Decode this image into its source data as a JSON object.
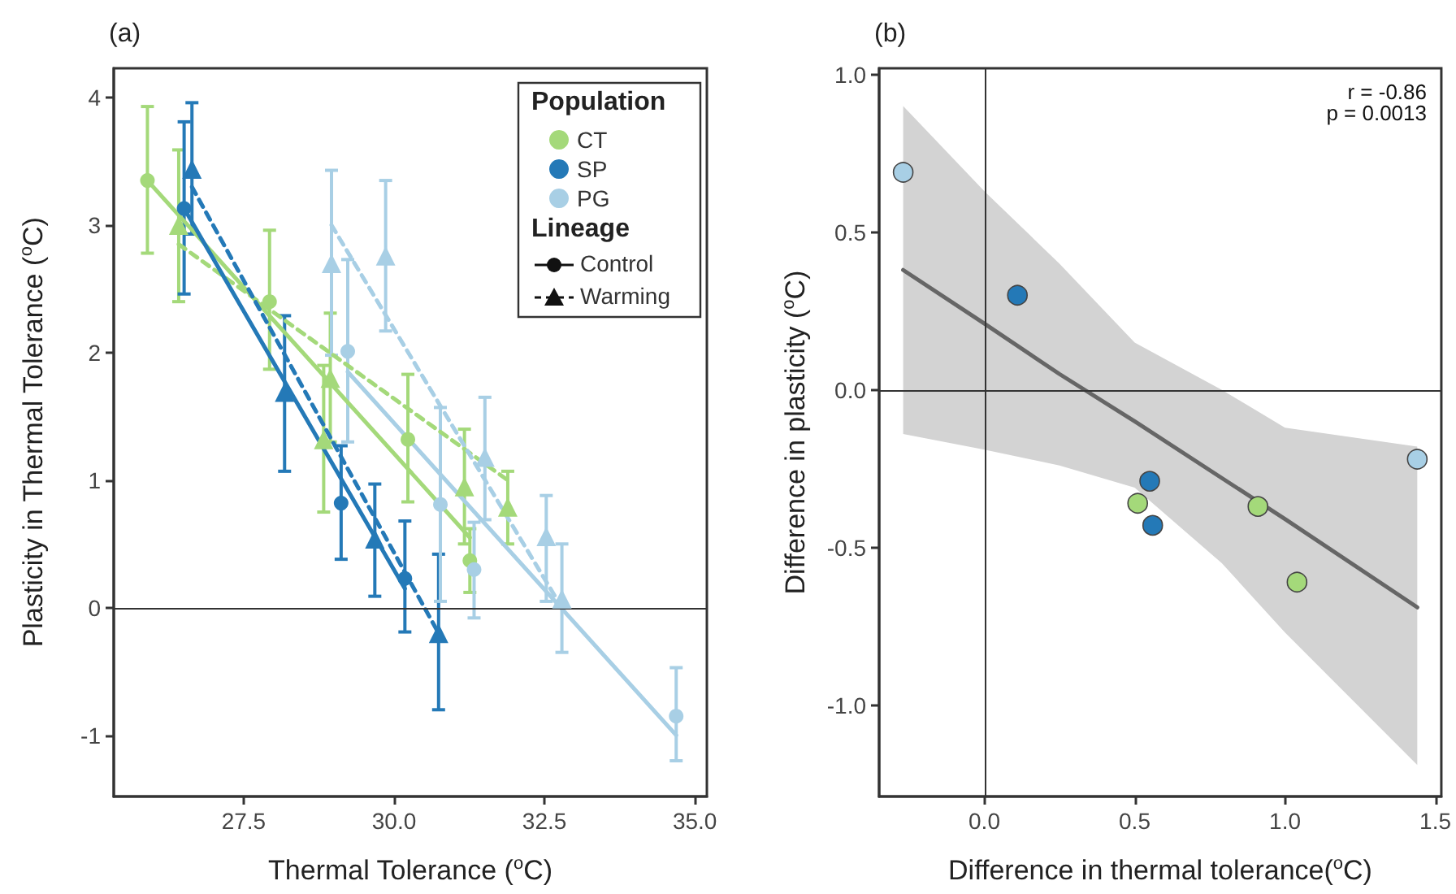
{
  "chart_data": [
    {
      "type": "scatter",
      "title": "(a)",
      "xlabel": "Thermal Tolerance ($^{o}$C)",
      "ylabel": "Plasticity in Thermal Tolerance ($^{o}$C)",
      "legend_title": "Population",
      "legend": "top right",
      "grid": false,
      "xlim": [
        25.34,
        35.2
      ],
      "xticks": [
        {
          "value": 27.5,
          "label": "27.5"
        },
        {
          "value": 30,
          "label": "30.0"
        },
        {
          "value": 32.5,
          "label": "32.5"
        },
        {
          "value": 35,
          "label": "35.0"
        }
      ],
      "ylim": [
        -1.48,
        4.23
      ],
      "yticks": [
        -1,
        0,
        1,
        2,
        3,
        4
      ],
      "ref_lines": [
        {
          "axis": "y",
          "value": 0,
          "color": "#333333"
        }
      ],
      "annotations": [
        "Lineage",
        "Control",
        "Warming"
      ],
      "series": [
        {
          "name": "CT",
          "color": "#a4d97a",
          "marker": "circle",
          "x": [
            25.9,
            27.93,
            30.23,
            31.26
          ],
          "values": [
            3.35,
            2.4,
            1.32,
            0.37
          ],
          "errors": [
            [
              2.78,
              3.93
            ],
            [
              1.87,
              2.96
            ],
            [
              0.83,
              1.83
            ],
            [
              0.12,
              0.62
            ]
          ]
        },
        {
          "color": "#a4d97a",
          "marker": "triangle",
          "x": [
            26.42,
            28.83,
            28.94,
            31.17,
            31.89
          ],
          "values": [
            3.0,
            1.32,
            1.8,
            0.95,
            0.79
          ],
          "errors": [
            [
              2.4,
              3.59
            ],
            [
              0.75,
              1.9
            ],
            [
              1.3,
              2.31
            ],
            [
              0.5,
              1.4
            ],
            [
              0.5,
              1.07
            ]
          ]
        },
        {
          "name": "SP",
          "color": "#2479b7",
          "marker": "circle",
          "x": [
            26.51,
            29.12,
            30.18
          ],
          "values": [
            3.13,
            0.82,
            0.23
          ],
          "errors": [
            [
              2.46,
              3.81
            ],
            [
              0.38,
              1.27
            ],
            [
              -0.19,
              0.68
            ]
          ]
        },
        {
          "color": "#2479b7",
          "marker": "triangle",
          "x": [
            26.64,
            28.18,
            29.68,
            30.74
          ],
          "values": [
            3.44,
            1.69,
            0.54,
            -0.2
          ],
          "errors": [
            [
              2.93,
              3.96
            ],
            [
              1.07,
              2.29
            ],
            [
              0.09,
              0.97
            ],
            [
              -0.8,
              0.42
            ]
          ]
        },
        {
          "name": "PG",
          "color": "#a8cfe5",
          "marker": "circle",
          "x": [
            29.23,
            30.77,
            31.33,
            34.69
          ],
          "values": [
            2.01,
            0.81,
            0.3,
            -0.85
          ],
          "errors": [
            [
              1.3,
              2.73
            ],
            [
              0.05,
              1.57
            ],
            [
              -0.08,
              0.67
            ],
            [
              -1.2,
              -0.47
            ]
          ]
        },
        {
          "color": "#a8cfe5",
          "marker": "triangle",
          "x": [
            28.96,
            29.86,
            31.51,
            32.53,
            32.79
          ],
          "values": [
            2.7,
            2.76,
            1.18,
            0.56,
            0.07
          ],
          "errors": [
            [
              1.98,
              3.43
            ],
            [
              2.17,
              3.35
            ],
            [
              0.69,
              1.65
            ],
            [
              0.05,
              0.88
            ],
            [
              -0.35,
              0.5
            ]
          ]
        },
        {
          "type": "line",
          "color": "#a4d97a",
          "line_style": "solid",
          "x": [
            25.9,
            31.26
          ],
          "values": [
            3.35,
            0.55
          ]
        },
        {
          "type": "line",
          "color": "#a4d97a",
          "line_style": "dashed",
          "x": [
            26.42,
            31.89
          ],
          "values": [
            2.85,
            1.0
          ]
        },
        {
          "type": "line",
          "color": "#2479b7",
          "line_style": "solid",
          "x": [
            26.51,
            30.18
          ],
          "values": [
            3.13,
            0.15
          ]
        },
        {
          "type": "line",
          "color": "#2479b7",
          "line_style": "dashed",
          "x": [
            26.64,
            30.74
          ],
          "values": [
            3.3,
            -0.2
          ]
        },
        {
          "type": "line",
          "color": "#a8cfe5",
          "line_style": "solid",
          "x": [
            29.23,
            34.69
          ],
          "values": [
            1.85,
            -1.0
          ]
        },
        {
          "type": "line",
          "color": "#a8cfe5",
          "line_style": "dashed",
          "x": [
            28.96,
            32.79
          ],
          "values": [
            3.0,
            0.0
          ]
        }
      ]
    },
    {
      "type": "scatter",
      "title": "(b)",
      "xlabel": "Difference in thermal tolerance($^{o}$C)",
      "ylabel": "Difference in plasticity ($^{o}$C)",
      "grid": false,
      "xlim": [
        -0.35,
        1.52
      ],
      "xticks": [
        {
          "value": 0,
          "label": "0.0"
        },
        {
          "value": 0.5,
          "label": "0.5"
        },
        {
          "value": 1,
          "label": "1.0"
        },
        {
          "value": 1.5,
          "label": "1.5"
        }
      ],
      "ylim": [
        -1.29,
        1.02
      ],
      "yticks": [
        {
          "value": -1,
          "label": "-1.0"
        },
        {
          "value": -0.5,
          "label": "-0.5"
        },
        {
          "value": 0,
          "label": "0.0"
        },
        {
          "value": 0.5,
          "label": "0.5"
        },
        {
          "value": 1,
          "label": "1.0"
        }
      ],
      "ref_lines": [
        {
          "axis": "x",
          "value": 0,
          "color": "#333333"
        },
        {
          "axis": "y",
          "value": 0,
          "color": "#333333"
        }
      ],
      "annotations": [
        "r = -0.86",
        "p = 0.0013"
      ],
      "series": [
        {
          "type": "line",
          "color": "#666666",
          "line_style": "solid",
          "x": [
            -0.27,
            0,
            0.25,
            0.5,
            0.79,
            1.0,
            1.44
          ],
          "values": [
            0.38,
            0.21,
            0.05,
            -0.1,
            -0.28,
            -0.41,
            -0.69
          ],
          "lower": [
            -0.14,
            -0.19,
            -0.24,
            -0.31,
            -0.55,
            -0.77,
            -1.19
          ],
          "upper": [
            0.9,
            0.63,
            0.4,
            0.15,
            0.0,
            -0.12,
            -0.18
          ]
        },
        {
          "color": "#a4d97a",
          "marker": "circle",
          "x": [
            0.51,
            0.91,
            1.04
          ],
          "values": [
            -0.36,
            -0.37,
            -0.61
          ]
        },
        {
          "color": "#2479b7",
          "marker": "circle",
          "x": [
            0.11,
            0.55,
            0.56
          ],
          "values": [
            0.3,
            -0.29,
            -0.43
          ]
        },
        {
          "color": "#a8cfe5",
          "marker": "circle",
          "x": [
            -0.27,
            1.44
          ],
          "values": [
            0.69,
            -0.22
          ]
        }
      ]
    }
  ]
}
